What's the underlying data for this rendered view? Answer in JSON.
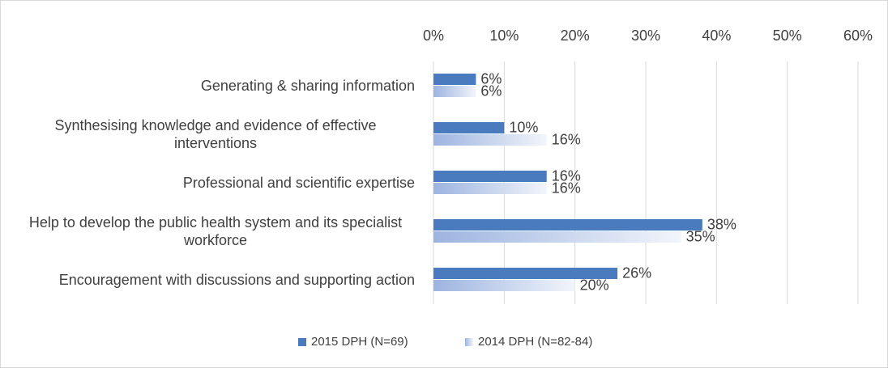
{
  "chart_data": {
    "type": "barh",
    "categories": [
      "Generating & sharing information",
      "Synthesising knowledge and evidence of effective interventions",
      "Professional and scientific expertise",
      "Help to develop the public health system and its specialist workforce",
      "Encouragement with discussions and supporting action"
    ],
    "series": [
      {
        "name": "2015 DPH (N=69)",
        "color": "#4a7bbf",
        "values": [
          6,
          10,
          16,
          38,
          26
        ],
        "value_labels": [
          "6%",
          "10%",
          "16%",
          "38%",
          "26%"
        ]
      },
      {
        "name": "2014 DPH (N=82-84)",
        "color": "#9db4e0",
        "values": [
          6,
          16,
          16,
          35,
          20
        ],
        "value_labels": [
          "6%",
          "16%",
          "16%",
          "35%",
          "20%"
        ]
      }
    ],
    "xlim": [
      0,
      60
    ],
    "xticks": [
      {
        "value": 0,
        "label": "0%"
      },
      {
        "value": 10,
        "label": "10%"
      },
      {
        "value": 20,
        "label": "20%"
      },
      {
        "value": 30,
        "label": "30%"
      },
      {
        "value": 40,
        "label": "40%"
      },
      {
        "value": 50,
        "label": "50%"
      },
      {
        "value": 60,
        "label": "60%"
      }
    ],
    "grid": true,
    "legend": "bottom"
  }
}
